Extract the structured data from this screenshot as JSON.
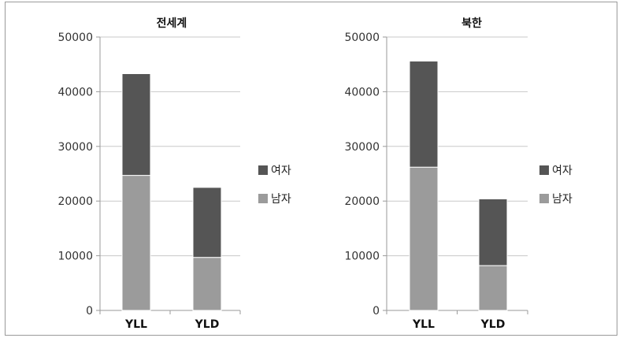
{
  "chart_data": [
    {
      "type": "bar",
      "stacked": true,
      "title": "전세계",
      "categories": [
        "YLL",
        "YLD"
      ],
      "series": [
        {
          "name": "남자",
          "values": [
            24700,
            9700
          ],
          "color": "#9b9b9b"
        },
        {
          "name": "여자",
          "values": [
            18600,
            12800
          ],
          "color": "#555555"
        }
      ],
      "ylim": [
        0,
        50000
      ],
      "yticks": [
        0,
        10000,
        20000,
        30000,
        40000,
        50000
      ],
      "grid": true,
      "legend": "right"
    },
    {
      "type": "bar",
      "stacked": true,
      "title": "북한",
      "categories": [
        "YLL",
        "YLD"
      ],
      "series": [
        {
          "name": "남자",
          "values": [
            26200,
            8200
          ],
          "color": "#9b9b9b"
        },
        {
          "name": "여자",
          "values": [
            19400,
            12200
          ],
          "color": "#555555"
        }
      ],
      "ylim": [
        0,
        50000
      ],
      "yticks": [
        0,
        10000,
        20000,
        30000,
        40000,
        50000
      ],
      "grid": true,
      "legend": "right"
    }
  ]
}
